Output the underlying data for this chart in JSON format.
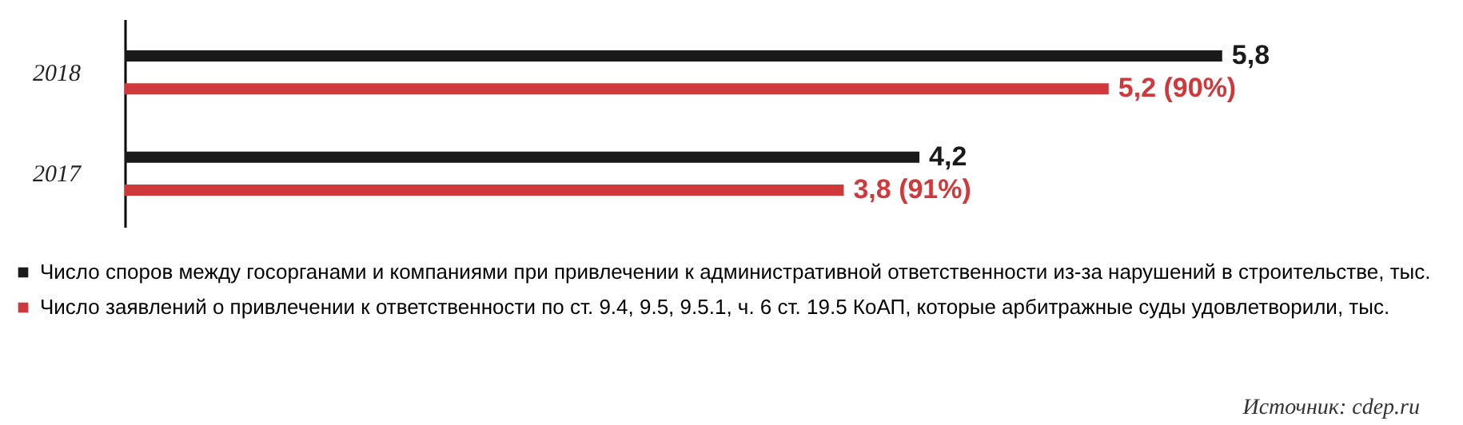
{
  "chart_data": {
    "type": "bar",
    "orientation": "horizontal",
    "categories": [
      "2018",
      "2017"
    ],
    "series": [
      {
        "name": "Число споров между госорганами и компаниями при привлечении к административной ответственности из-за нарушений в строительстве, тыс.",
        "color": "#1a1a1a",
        "values": [
          5.8,
          4.2
        ],
        "value_labels": [
          "5,8",
          "4,2"
        ]
      },
      {
        "name": "Число заявлений о привлечении к ответственности по ст. 9.4, 9.5, 9.5.1, ч. 6 ст. 19.5 КоАП, которые арбитражные суды удовлетворили, тыс.",
        "color": "#d0393b",
        "values": [
          5.2,
          3.8
        ],
        "value_labels": [
          "5,2 (90%)",
          "3,8 (91%)"
        ]
      }
    ],
    "grid": false,
    "legend": "bottom left",
    "tick_labels": "y",
    "annotations": [
      "Источник: cdep.ru"
    ]
  }
}
